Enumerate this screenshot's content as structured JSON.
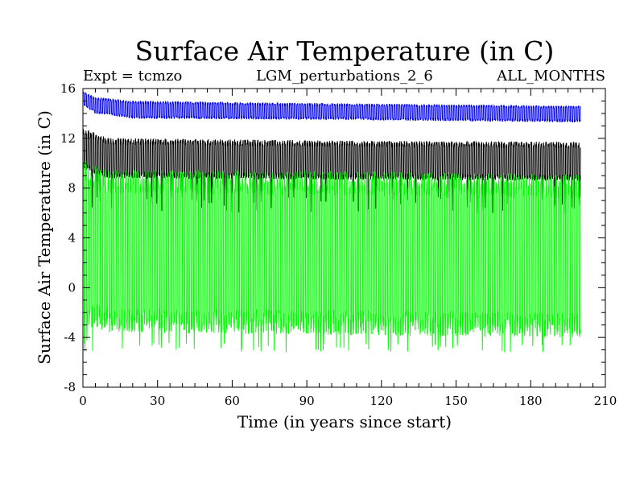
{
  "chart_data": {
    "type": "line",
    "title": "Surface Air Temperature (in C)",
    "subtitle_left": "Expt = tcmzo",
    "subtitle_center": "LGM_perturbations_2_6",
    "subtitle_right": "ALL_MONTHS",
    "xlabel": "Time (in years since start)",
    "ylabel": "Surface Air Temperature (in C)",
    "xlim": [
      0,
      210
    ],
    "ylim": [
      -8,
      16
    ],
    "xticks": [
      0,
      30,
      60,
      90,
      120,
      150,
      180,
      210
    ],
    "yticks": [
      -8,
      -4,
      0,
      4,
      8,
      12,
      16
    ],
    "x_range_data": [
      0,
      200
    ],
    "series": [
      {
        "name": "blue series",
        "color": "#0000ff",
        "monthly": true,
        "upper_envelope": [
          [
            0,
            15.8
          ],
          [
            5,
            15.3
          ],
          [
            20,
            15.0
          ],
          [
            100,
            14.8
          ],
          [
            200,
            14.6
          ]
        ],
        "lower_envelope": [
          [
            0,
            14.7
          ],
          [
            5,
            14.0
          ],
          [
            20,
            13.6
          ],
          [
            100,
            13.5
          ],
          [
            200,
            13.3
          ]
        ]
      },
      {
        "name": "black series",
        "color": "#000000",
        "monthly": true,
        "upper_envelope": [
          [
            0,
            12.8
          ],
          [
            10,
            12.0
          ],
          [
            100,
            11.8
          ],
          [
            200,
            11.7
          ]
        ],
        "lower_envelope": [
          [
            0,
            9.5
          ],
          [
            10,
            8.8
          ],
          [
            100,
            8.7
          ],
          [
            200,
            8.6
          ]
        ],
        "min_spike": 6.0
      },
      {
        "name": "green series",
        "color": "#00ff00",
        "monthly": true,
        "upper_envelope": [
          [
            0,
            10.3
          ],
          [
            10,
            9.5
          ],
          [
            100,
            9.4
          ],
          [
            200,
            9.1
          ]
        ],
        "lower_envelope": [
          [
            0,
            -3.0
          ],
          [
            10,
            -3.6
          ],
          [
            100,
            -3.8
          ],
          [
            200,
            -4.0
          ]
        ],
        "min_spike": -5.2
      }
    ]
  }
}
